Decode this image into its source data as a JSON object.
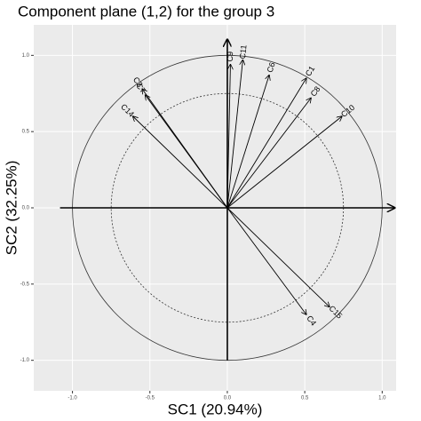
{
  "chart_data": {
    "type": "arrows",
    "title": "Component plane (1,2) for the group 3",
    "x_label": "SC1 (20.94%)",
    "y_label": "SC2 (32.25%)",
    "xlim": [
      -1.25,
      1.09
    ],
    "ylim": [
      -1.2,
      1.2
    ],
    "xticks": [
      {
        "value": -1,
        "label": "-1.0"
      },
      {
        "value": -0.5,
        "label": "-0.5"
      },
      {
        "value": 0,
        "label": "0.0"
      },
      {
        "value": 0.5,
        "label": "0.5"
      },
      {
        "value": 1,
        "label": "1.0"
      }
    ],
    "yticks": [
      {
        "value": -1,
        "label": "-1.0"
      },
      {
        "value": -0.5,
        "label": "-0.5"
      },
      {
        "value": 0,
        "label": "0.0"
      },
      {
        "value": 0.5,
        "label": "0.5"
      },
      {
        "value": 1,
        "label": "1.0"
      }
    ],
    "grid": true,
    "outer_radius": 1,
    "inner_radius": 0.75,
    "color": "#000000",
    "arrows": [
      {
        "name": "C9",
        "x": 0.02,
        "y": 0.94
      },
      {
        "name": "C11",
        "x": 0.1,
        "y": 0.97
      },
      {
        "name": "C6",
        "x": 0.27,
        "y": 0.87
      },
      {
        "name": "C1",
        "x": 0.51,
        "y": 0.85
      },
      {
        "name": "C8",
        "x": 0.54,
        "y": 0.72
      },
      {
        "name": "C10",
        "x": 0.74,
        "y": 0.6
      },
      {
        "name": "C4",
        "x": 0.51,
        "y": -0.7
      },
      {
        "name": "C15",
        "x": 0.66,
        "y": -0.65
      },
      {
        "name": "C3",
        "x": -0.55,
        "y": 0.78
      },
      {
        "name": "C7",
        "x": -0.53,
        "y": 0.74
      },
      {
        "name": "C14",
        "x": -0.61,
        "y": 0.6
      }
    ]
  }
}
